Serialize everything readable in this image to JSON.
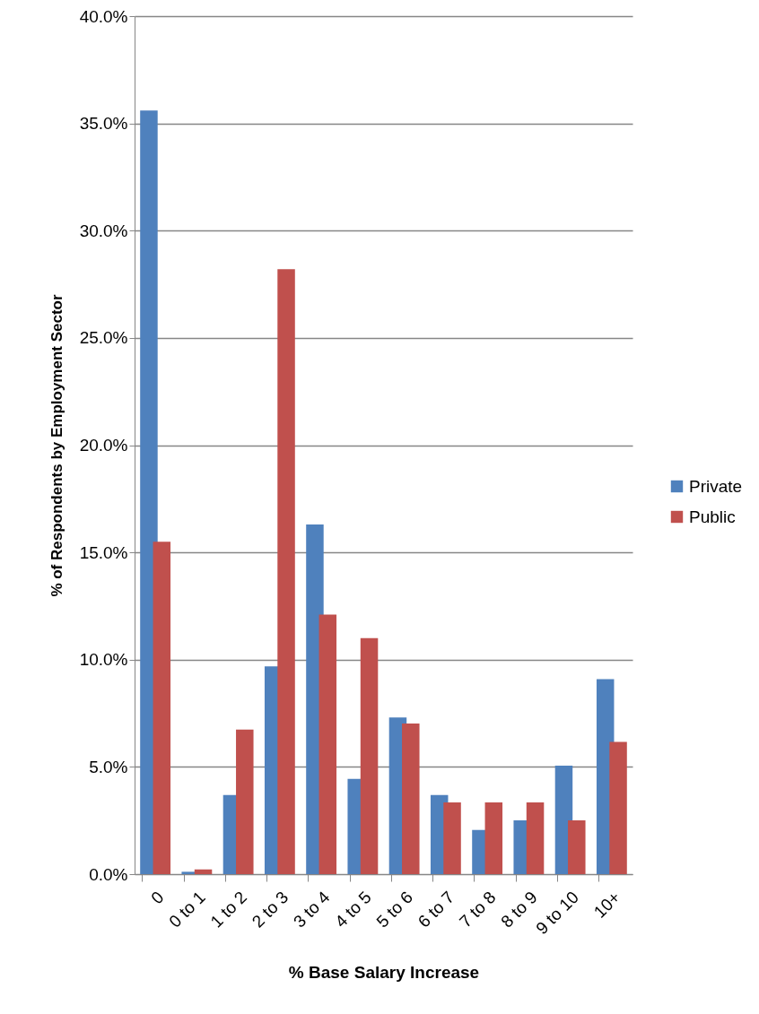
{
  "chart_data": {
    "type": "bar",
    "xlabel": "% Base Salary Increase",
    "ylabel": "% of Respondents by Employment Sector",
    "categories": [
      "0",
      "0 to 1",
      "1 to 2",
      "2 to 3",
      "3 to 4",
      "4 to 5",
      "5 to 6",
      "6 to 7",
      "7 to 8",
      "8 to 9",
      "9 to 10",
      "10+"
    ],
    "series": [
      {
        "name": "Private",
        "color": "#4f81bd",
        "values": [
          35.6,
          0.11,
          3.69,
          9.69,
          16.3,
          4.44,
          7.3,
          3.69,
          2.06,
          2.51,
          5.06,
          9.09
        ]
      },
      {
        "name": "Public",
        "color": "#c0504d",
        "values": [
          15.5,
          0.22,
          6.74,
          28.2,
          12.1,
          11.0,
          7.02,
          3.34,
          3.34,
          3.34,
          2.51,
          6.17
        ]
      }
    ],
    "ylim": [
      0,
      40
    ],
    "yticks": [
      {
        "value": 0,
        "label": "0.0%"
      },
      {
        "value": 5,
        "label": "5.0%"
      },
      {
        "value": 10,
        "label": "10.0%"
      },
      {
        "value": 15,
        "label": "15.0%"
      },
      {
        "value": 20,
        "label": "20.0%"
      },
      {
        "value": 25,
        "label": "25.0%"
      },
      {
        "value": 30,
        "label": "30.0%"
      },
      {
        "value": 35,
        "label": "35.0%"
      },
      {
        "value": 40,
        "label": "40.0%"
      }
    ],
    "grid": "y",
    "legend": "right"
  }
}
